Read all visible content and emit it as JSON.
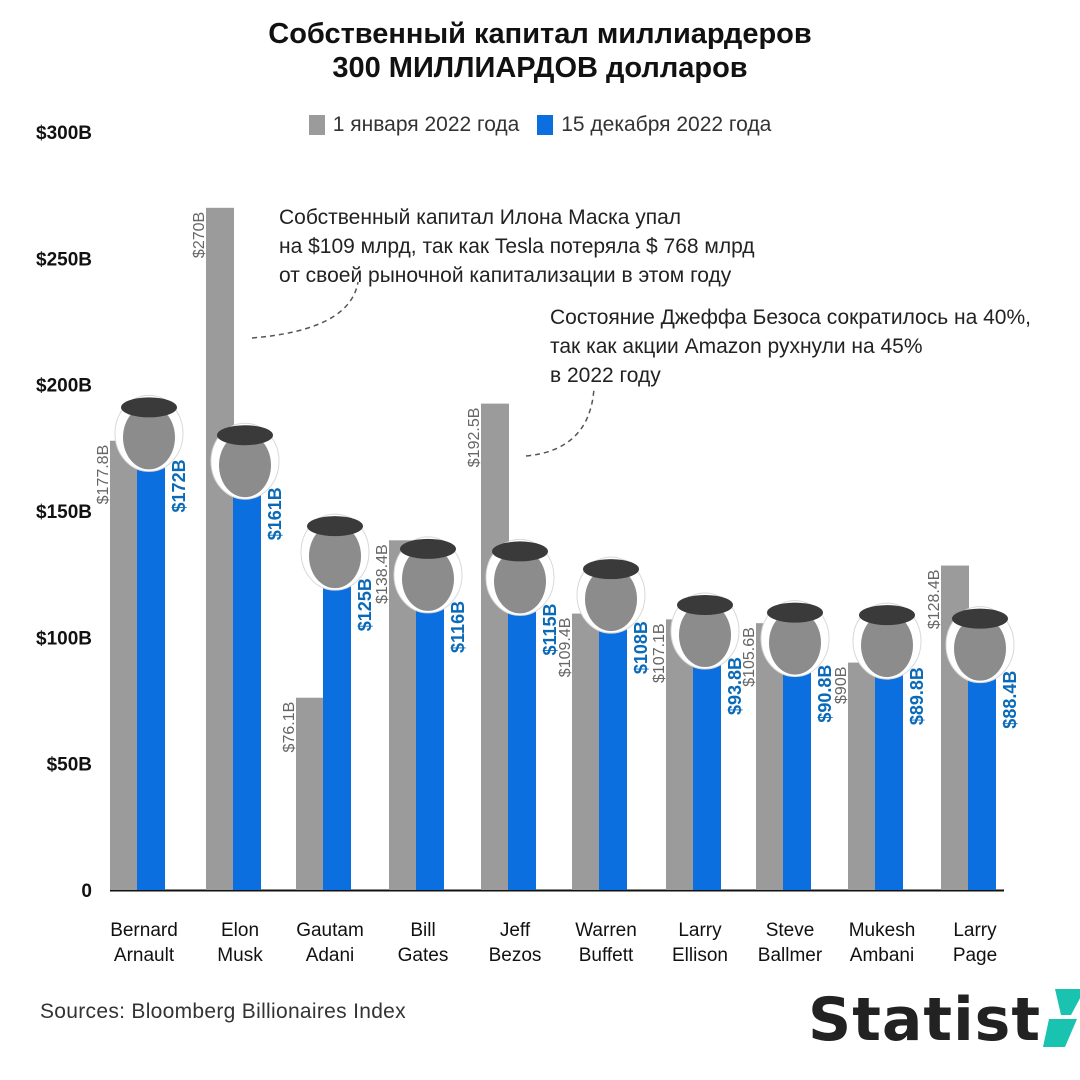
{
  "header": {
    "title_line1": "Собственный капитал миллиардеров",
    "title_line2": "300 МИЛЛИАРДОВ долларов"
  },
  "annotations": {
    "musk": [
      "Собственный капитал Илона Маска упал",
      "на $109 млрд, так как Tesla потеряла $ 768 млрд",
      "от своей рыночной капитализации в этом году"
    ],
    "bezos": [
      "Состояние Джеффа Безоса сократилось на 40%,",
      "так как акции Amazon рухнули на 45%",
      "в 2022 году"
    ]
  },
  "footer": {
    "source": "Sources: Bloomberg Billionaires Index",
    "logo_text": "Statist"
  },
  "colors": {
    "series_jan": "#9b9b9b",
    "series_dec": "#0b6fe0",
    "label_jan": "#666666",
    "label_dec": "#0a6ab8",
    "logo_accent": "#19c3b0"
  },
  "icons": [
    "person-photo-icon",
    "statista-logo-icon"
  ],
  "chart_data": {
    "type": "bar",
    "ylim": [
      0,
      300
    ],
    "ticks": [
      {
        "value": 0,
        "label": "0"
      },
      {
        "value": 50,
        "label": "$50В"
      },
      {
        "value": 100,
        "label": "$100В"
      },
      {
        "value": 150,
        "label": "$150В"
      },
      {
        "value": 200,
        "label": "$200В"
      },
      {
        "value": 250,
        "label": "$250В"
      },
      {
        "value": 300,
        "label": "$300В"
      }
    ],
    "categories": [
      [
        "Bernard",
        "Arnault"
      ],
      [
        "Elon",
        "Musk"
      ],
      [
        "Gautam",
        "Adani"
      ],
      [
        "Bill",
        "Gates"
      ],
      [
        "Jeff",
        "Bezos"
      ],
      [
        "Warren",
        "Buffett"
      ],
      [
        "Larry",
        "Ellison"
      ],
      [
        "Steve",
        "Ballmer"
      ],
      [
        "Mukesh",
        "Ambani"
      ],
      [
        "Larry",
        "Page"
      ]
    ],
    "series": [
      {
        "name": "1 января 2022 года",
        "values": [
          177.8,
          270,
          76.1,
          138.4,
          192.5,
          109.4,
          107.1,
          105.6,
          90,
          128.4
        ],
        "labels": [
          "$177.8B",
          "$270В",
          "$76.1B",
          "$138.4B",
          "$192.5B",
          "$109.4B",
          "$107.1B",
          "$105.6B",
          "$90В",
          "$128.4B"
        ]
      },
      {
        "name": "15 декабря 2022 года",
        "values": [
          172,
          161,
          125,
          116,
          115,
          108,
          93.8,
          90.8,
          89.8,
          88.4
        ],
        "labels": [
          "$172В",
          "$161В",
          "$125В",
          "$116В",
          "$115В",
          "$108В",
          "$93.8В",
          "$90.8В",
          "$89.8В",
          "$88.4В"
        ]
      }
    ]
  }
}
